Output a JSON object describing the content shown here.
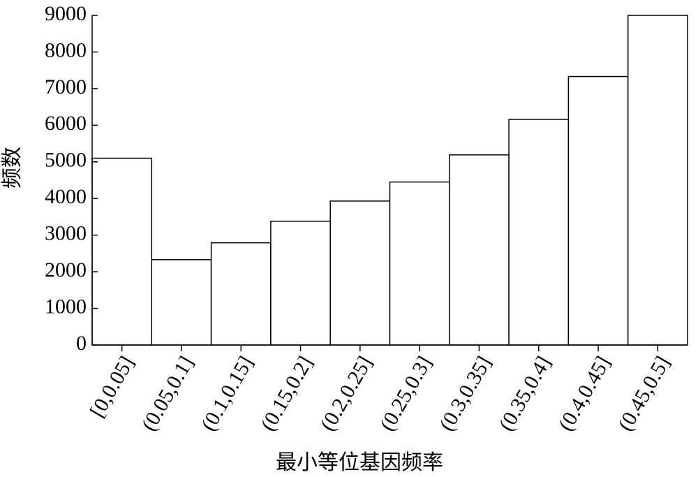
{
  "chart_data": {
    "type": "bar",
    "xlabel": "最小等位基因频率",
    "ylabel": "频数",
    "categories": [
      "[0,0.05]",
      "(0.05,0.1]",
      "(0.1,0.15]",
      "(0.15,0.2]",
      "(0.2,0.25]",
      "(0.25,0.3]",
      "(0.3,0.35]",
      "(0.35,0.4]",
      "(0.4,0.45]",
      "(0.45,0.5]"
    ],
    "values": [
      5100,
      2330,
      2790,
      3380,
      3930,
      4450,
      5190,
      6160,
      7330,
      9000
    ],
    "color": "#ffffff",
    "ylim": [
      0,
      9000
    ],
    "yticks": [
      0,
      1000,
      2000,
      3000,
      4000,
      5000,
      6000,
      7000,
      8000,
      9000
    ],
    "grid": false
  }
}
